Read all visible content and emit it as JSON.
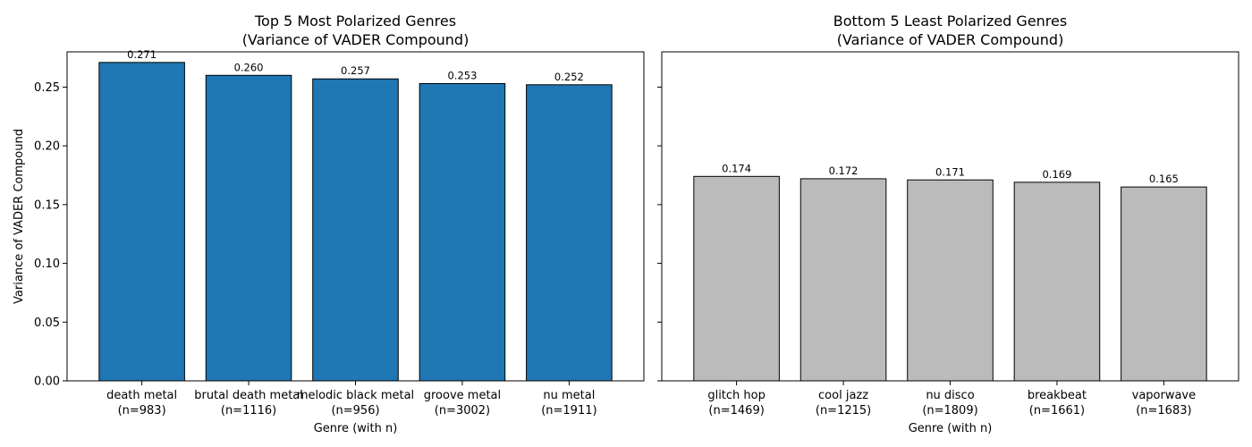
{
  "chart_data": [
    {
      "type": "bar",
      "title": [
        "Top 5 Most Polarized Genres",
        "(Variance of VADER Compound)"
      ],
      "xlabel": "Genre (with n)",
      "ylabel": "Variance of VADER Compound",
      "ylim": [
        0,
        0.28
      ],
      "yticks": [
        "0.00",
        "0.05",
        "0.10",
        "0.15",
        "0.20",
        "0.25"
      ],
      "categories": [
        [
          "death metal",
          "(n=983)"
        ],
        [
          "brutal death metal",
          "(n=1116)"
        ],
        [
          "melodic black metal",
          "(n=956)"
        ],
        [
          "groove metal",
          "(n=3002)"
        ],
        [
          "nu metal",
          "(n=1911)"
        ]
      ],
      "values": [
        0.271,
        0.26,
        0.257,
        0.253,
        0.252
      ],
      "value_labels": [
        "0.271",
        "0.260",
        "0.257",
        "0.253",
        "0.252"
      ],
      "bar_color": "#1f77b4",
      "grid": false
    },
    {
      "type": "bar",
      "title": [
        "Bottom 5 Least Polarized Genres",
        "(Variance of VADER Compound)"
      ],
      "xlabel": "Genre (with n)",
      "ylabel": "",
      "ylim": [
        0,
        0.28
      ],
      "yticks": [
        "0.00",
        "0.05",
        "0.10",
        "0.15",
        "0.20",
        "0.25"
      ],
      "categories": [
        [
          "glitch hop",
          "(n=1469)"
        ],
        [
          "cool jazz",
          "(n=1215)"
        ],
        [
          "nu disco",
          "(n=1809)"
        ],
        [
          "breakbeat",
          "(n=1661)"
        ],
        [
          "vaporwave",
          "(n=1683)"
        ]
      ],
      "values": [
        0.174,
        0.172,
        0.171,
        0.169,
        0.165
      ],
      "value_labels": [
        "0.174",
        "0.172",
        "0.171",
        "0.169",
        "0.165"
      ],
      "bar_color": "#bbbbbb",
      "grid": false
    }
  ]
}
